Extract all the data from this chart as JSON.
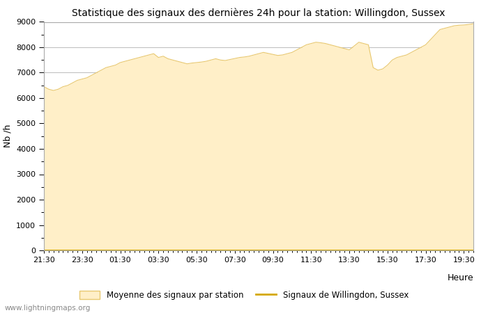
{
  "title": "Statistique des signaux des dernières 24h pour la station: Willingdon, Sussex",
  "xlabel": "Heure",
  "ylabel": "Nb /h",
  "ylim": [
    0,
    9000
  ],
  "yticks": [
    0,
    1000,
    2000,
    3000,
    4000,
    5000,
    6000,
    7000,
    8000,
    9000
  ],
  "xtick_labels": [
    "21:30",
    "23:30",
    "01:30",
    "03:30",
    "05:30",
    "07:30",
    "09:30",
    "11:30",
    "13:30",
    "15:30",
    "17:30",
    "19:30"
  ],
  "fill_color": "#FFEFC8",
  "fill_edge_color": "#E8C870",
  "line_color": "#D4A800",
  "bg_color": "#FFFFFF",
  "plot_bg_color": "#FFFFFF",
  "grid_color": "#BBBBBB",
  "watermark": "www.lightningmaps.org",
  "legend_fill_label": "Moyenne des signaux par station",
  "legend_line_label": "Signaux de Willingdon, Sussex",
  "x_data": [
    0.0,
    0.25,
    0.5,
    0.75,
    1.0,
    1.25,
    1.5,
    1.75,
    2.0,
    2.25,
    2.5,
    2.75,
    3.0,
    3.25,
    3.5,
    3.75,
    4.0,
    4.25,
    4.5,
    4.75,
    5.0,
    5.25,
    5.5,
    5.75,
    6.0,
    6.25,
    6.5,
    6.75,
    7.0,
    7.25,
    7.5,
    7.75,
    8.0,
    8.25,
    8.5,
    8.75,
    9.0,
    9.25,
    9.5,
    9.75,
    10.0,
    10.25,
    10.5,
    10.75,
    11.0,
    11.25,
    11.5,
    11.75,
    12.0,
    12.25,
    12.5,
    12.75,
    13.0,
    13.25,
    13.5,
    13.75,
    14.0,
    14.25,
    14.5,
    14.75,
    15.0,
    15.25,
    15.5,
    15.75,
    16.0,
    16.25,
    16.5,
    16.75,
    17.0,
    17.25,
    17.5,
    17.75,
    18.0,
    18.25,
    18.5,
    18.75,
    19.0,
    19.25,
    19.5,
    19.75,
    20.0,
    20.25,
    20.5,
    20.75,
    21.0,
    21.25,
    21.5,
    21.75,
    22.0,
    22.25,
    22.5
  ],
  "y_data": [
    6450,
    6350,
    6300,
    6350,
    6450,
    6500,
    6600,
    6700,
    6750,
    6800,
    6900,
    7000,
    7100,
    7200,
    7250,
    7300,
    7400,
    7450,
    7500,
    7550,
    7600,
    7650,
    7700,
    7750,
    7600,
    7650,
    7550,
    7500,
    7450,
    7400,
    7350,
    7380,
    7400,
    7420,
    7450,
    7500,
    7550,
    7500,
    7480,
    7520,
    7560,
    7600,
    7620,
    7650,
    7700,
    7750,
    7800,
    7760,
    7720,
    7680,
    7700,
    7750,
    7800,
    7900,
    8000,
    8100,
    8150,
    8200,
    8180,
    8150,
    8100,
    8050,
    8000,
    7950,
    7900,
    8050,
    8200,
    8150,
    8100,
    7200,
    7100,
    7150,
    7300,
    7500,
    7600,
    7650,
    7700,
    7800,
    7900,
    8000,
    8100,
    8300,
    8500,
    8700,
    8750,
    8800,
    8850,
    8870,
    8880,
    8900,
    8930
  ],
  "y_line": [
    5,
    5,
    5,
    5,
    5,
    5,
    5,
    5,
    5,
    5,
    5,
    5,
    5,
    5,
    5,
    5,
    5,
    5,
    5,
    5,
    5,
    5,
    5,
    5,
    5,
    5,
    5,
    5,
    5,
    5,
    5,
    5,
    5,
    5,
    5,
    5,
    5,
    5,
    5,
    5,
    5,
    5,
    5,
    5,
    5,
    5,
    5,
    5,
    5,
    5,
    5,
    5,
    5,
    5,
    5,
    5,
    5,
    5,
    5,
    5,
    5,
    5,
    5,
    5,
    5,
    5,
    5,
    5,
    5,
    5,
    5,
    5,
    5,
    5,
    5,
    5,
    5,
    5,
    5,
    5,
    5,
    5,
    5,
    5,
    5,
    5,
    5,
    5,
    5,
    5,
    5
  ]
}
